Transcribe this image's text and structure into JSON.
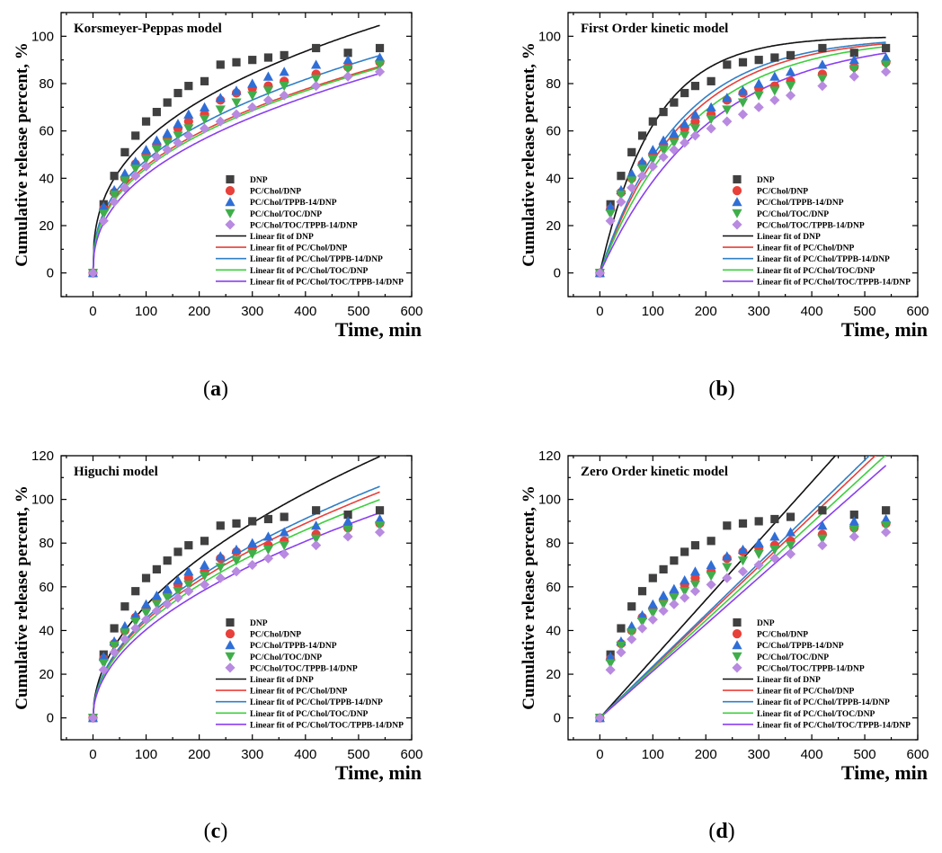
{
  "chart_data": [
    {
      "type": "scatter",
      "panel": "a",
      "title": "Korsmeyer-Peppas model",
      "caption_letter": "a",
      "xlabel": "Time, min",
      "ylabel": "Cumulative release percent, %",
      "xlim": [
        -60,
        600
      ],
      "ylim": [
        -10,
        110
      ],
      "xticks": [
        0,
        100,
        200,
        300,
        400,
        500,
        600
      ],
      "yticks": [
        0,
        20,
        40,
        60,
        80,
        100
      ],
      "x": [
        0,
        20,
        40,
        60,
        80,
        100,
        120,
        140,
        160,
        180,
        210,
        240,
        270,
        300,
        330,
        360,
        420,
        480,
        540
      ],
      "series": [
        {
          "name": "DNP",
          "marker": "square",
          "color": "#404040",
          "values": [
            0,
            29,
            41,
            51,
            58,
            64,
            68,
            72,
            76,
            79,
            81,
            88,
            89,
            90,
            91,
            92,
            95,
            93,
            95
          ]
        },
        {
          "name": "PC/Chol/DNP",
          "marker": "circle",
          "color": "#e8403a",
          "values": [
            0,
            27,
            34,
            40,
            46,
            50,
            54,
            57,
            61,
            64,
            67,
            73,
            76,
            78,
            79,
            81,
            84,
            87,
            89
          ]
        },
        {
          "name": "PC/Chol/TPPB-14/DNP",
          "marker": "triangle-up",
          "color": "#2f6ed6",
          "values": [
            0,
            28,
            35,
            42,
            47,
            52,
            56,
            59,
            63,
            67,
            70,
            74,
            77,
            80,
            83,
            85,
            88,
            90,
            91
          ]
        },
        {
          "name": "PC/Chol/TOC/DNP",
          "marker": "triangle-down",
          "color": "#3fae4a",
          "values": [
            0,
            25,
            33,
            39,
            44,
            48,
            52,
            55,
            58,
            61,
            65,
            69,
            72,
            75,
            77,
            79,
            82,
            86,
            88
          ]
        },
        {
          "name": "PC/Chol/TOC/TPPB-14/DNP",
          "marker": "diamond",
          "color": "#b88ae0",
          "values": [
            0,
            22,
            30,
            36,
            41,
            45,
            49,
            52,
            55,
            58,
            61,
            64,
            67,
            70,
            73,
            75,
            79,
            83,
            85
          ]
        }
      ],
      "fits": [
        {
          "name": "Linear fit of DNP",
          "color": "#111111",
          "kind": "power",
          "k": 10.2,
          "n": 0.37
        },
        {
          "name": "Linear fit of PC/Chol/DNP",
          "color": "#e8403a",
          "kind": "power",
          "k": 7.5,
          "n": 0.39
        },
        {
          "name": "Linear fit of PC/Chol/TPPB-14/DNP",
          "color": "#2f7fc8",
          "kind": "power",
          "k": 7.9,
          "n": 0.39
        },
        {
          "name": "Linear fit of PC/Chol/TOC/DNP",
          "color": "#3ecf3e",
          "kind": "power",
          "k": 7.0,
          "n": 0.4
        },
        {
          "name": "Linear fit of PC/Chol/TOC/TPPB-14/DNP",
          "color": "#8a3ff0",
          "kind": "power",
          "k": 6.0,
          "n": 0.42
        }
      ]
    },
    {
      "type": "scatter",
      "panel": "b",
      "title": "First Order kinetic model",
      "caption_letter": "b",
      "xlabel": "Time, min",
      "ylabel": "Cumulative release percent, %",
      "xlim": [
        -60,
        600
      ],
      "ylim": [
        -10,
        110
      ],
      "xticks": [
        0,
        100,
        200,
        300,
        400,
        500,
        600
      ],
      "yticks": [
        0,
        20,
        40,
        60,
        80,
        100
      ],
      "x": [
        0,
        20,
        40,
        60,
        80,
        100,
        120,
        140,
        160,
        180,
        210,
        240,
        270,
        300,
        330,
        360,
        420,
        480,
        540
      ],
      "series": [
        {
          "name": "DNP",
          "marker": "square",
          "color": "#404040",
          "values": [
            0,
            29,
            41,
            51,
            58,
            64,
            68,
            72,
            76,
            79,
            81,
            88,
            89,
            90,
            91,
            92,
            95,
            93,
            95
          ]
        },
        {
          "name": "PC/Chol/DNP",
          "marker": "circle",
          "color": "#e8403a",
          "values": [
            0,
            27,
            34,
            40,
            46,
            50,
            54,
            57,
            61,
            64,
            67,
            73,
            76,
            78,
            79,
            81,
            84,
            87,
            89
          ]
        },
        {
          "name": "PC/Chol/TPPB-14/DNP",
          "marker": "triangle-up",
          "color": "#2f6ed6",
          "values": [
            0,
            28,
            35,
            42,
            47,
            52,
            56,
            59,
            63,
            67,
            70,
            74,
            77,
            80,
            83,
            85,
            88,
            90,
            91
          ]
        },
        {
          "name": "PC/Chol/TOC/DNP",
          "marker": "triangle-down",
          "color": "#3fae4a",
          "values": [
            0,
            25,
            33,
            39,
            44,
            48,
            52,
            55,
            58,
            61,
            65,
            69,
            72,
            75,
            77,
            79,
            82,
            86,
            88
          ]
        },
        {
          "name": "PC/Chol/TOC/TPPB-14/DNP",
          "marker": "diamond",
          "color": "#b88ae0",
          "values": [
            0,
            22,
            30,
            36,
            41,
            45,
            49,
            52,
            55,
            58,
            61,
            64,
            67,
            70,
            73,
            75,
            79,
            83,
            85
          ]
        }
      ],
      "fits": [
        {
          "name": "Linear fit of DNP",
          "color": "#111111",
          "kind": "first",
          "a": 100,
          "k": 0.0098
        },
        {
          "name": "Linear fit of PC/Chol/DNP",
          "color": "#e8403a",
          "kind": "first",
          "a": 100,
          "k": 0.0064
        },
        {
          "name": "Linear fit of PC/Chol/TPPB-14/DNP",
          "color": "#2f7fc8",
          "kind": "first",
          "a": 100,
          "k": 0.0068
        },
        {
          "name": "Linear fit of PC/Chol/TOC/DNP",
          "color": "#3ecf3e",
          "kind": "first",
          "a": 100,
          "k": 0.0058
        },
        {
          "name": "Linear fit of PC/Chol/TOC/TPPB-14/DNP",
          "color": "#8a3ff0",
          "kind": "first",
          "a": 100,
          "k": 0.0049
        }
      ]
    },
    {
      "type": "scatter",
      "panel": "c",
      "title": "Higuchi model",
      "caption_letter": "c",
      "xlabel": "Time, min",
      "ylabel": "Cumulative release percent, %",
      "xlim": [
        -60,
        600
      ],
      "ylim": [
        -10,
        120
      ],
      "xticks": [
        0,
        100,
        200,
        300,
        400,
        500,
        600
      ],
      "yticks": [
        0,
        20,
        40,
        60,
        80,
        100,
        120
      ],
      "x": [
        0,
        20,
        40,
        60,
        80,
        100,
        120,
        140,
        160,
        180,
        210,
        240,
        270,
        300,
        330,
        360,
        420,
        480,
        540
      ],
      "series": [
        {
          "name": "DNP",
          "marker": "square",
          "color": "#404040",
          "values": [
            0,
            29,
            41,
            51,
            58,
            64,
            68,
            72,
            76,
            79,
            81,
            88,
            89,
            90,
            91,
            92,
            95,
            93,
            95
          ]
        },
        {
          "name": "PC/Chol/DNP",
          "marker": "circle",
          "color": "#e8403a",
          "values": [
            0,
            27,
            34,
            40,
            46,
            50,
            54,
            57,
            61,
            64,
            67,
            73,
            76,
            78,
            79,
            81,
            84,
            87,
            89
          ]
        },
        {
          "name": "PC/Chol/TPPB-14/DNP",
          "marker": "triangle-up",
          "color": "#2f6ed6",
          "values": [
            0,
            28,
            35,
            42,
            47,
            52,
            56,
            59,
            63,
            67,
            70,
            74,
            77,
            80,
            83,
            85,
            88,
            90,
            91
          ]
        },
        {
          "name": "PC/Chol/TOC/DNP",
          "marker": "triangle-down",
          "color": "#3fae4a",
          "values": [
            0,
            25,
            33,
            39,
            44,
            48,
            52,
            55,
            58,
            61,
            65,
            69,
            72,
            75,
            77,
            79,
            82,
            86,
            88
          ]
        },
        {
          "name": "PC/Chol/TOC/TPPB-14/DNP",
          "marker": "diamond",
          "color": "#b88ae0",
          "values": [
            0,
            22,
            30,
            36,
            41,
            45,
            49,
            52,
            55,
            58,
            61,
            64,
            67,
            70,
            73,
            75,
            79,
            83,
            85
          ]
        }
      ],
      "fits": [
        {
          "name": "Linear fit of DNP",
          "color": "#111111",
          "kind": "power",
          "k": 5.15,
          "n": 0.5
        },
        {
          "name": "Linear fit of PC/Chol/DNP",
          "color": "#e8403a",
          "kind": "power",
          "k": 4.45,
          "n": 0.5
        },
        {
          "name": "Linear fit of PC/Chol/TPPB-14/DNP",
          "color": "#2f7fc8",
          "kind": "power",
          "k": 4.56,
          "n": 0.5
        },
        {
          "name": "Linear fit of PC/Chol/TOC/DNP",
          "color": "#3ecf3e",
          "kind": "power",
          "k": 4.3,
          "n": 0.5
        },
        {
          "name": "Linear fit of PC/Chol/TOC/TPPB-14/DNP",
          "color": "#8a3ff0",
          "kind": "power",
          "k": 4.04,
          "n": 0.5
        }
      ]
    },
    {
      "type": "scatter",
      "panel": "d",
      "title": "Zero Order kinetic model",
      "caption_letter": "d",
      "xlabel": "Time, min",
      "ylabel": "Cumulative release percent, %",
      "xlim": [
        -60,
        600
      ],
      "ylim": [
        -10,
        120
      ],
      "xticks": [
        0,
        100,
        200,
        300,
        400,
        500,
        600
      ],
      "yticks": [
        0,
        20,
        40,
        60,
        80,
        100,
        120
      ],
      "x": [
        0,
        20,
        40,
        60,
        80,
        100,
        120,
        140,
        160,
        180,
        210,
        240,
        270,
        300,
        330,
        360,
        420,
        480,
        540
      ],
      "series": [
        {
          "name": "DNP",
          "marker": "square",
          "color": "#404040",
          "values": [
            0,
            29,
            41,
            51,
            58,
            64,
            68,
            72,
            76,
            79,
            81,
            88,
            89,
            90,
            91,
            92,
            95,
            93,
            95
          ]
        },
        {
          "name": "PC/Chol/DNP",
          "marker": "circle",
          "color": "#e8403a",
          "values": [
            0,
            27,
            34,
            40,
            46,
            50,
            54,
            57,
            61,
            64,
            67,
            73,
            76,
            78,
            79,
            81,
            84,
            87,
            89
          ]
        },
        {
          "name": "PC/Chol/TPPB-14/DNP",
          "marker": "triangle-up",
          "color": "#2f6ed6",
          "values": [
            0,
            28,
            35,
            42,
            47,
            52,
            56,
            59,
            63,
            67,
            70,
            74,
            77,
            80,
            83,
            85,
            88,
            90,
            91
          ]
        },
        {
          "name": "PC/Chol/TOC/DNP",
          "marker": "triangle-down",
          "color": "#3fae4a",
          "values": [
            0,
            25,
            33,
            39,
            44,
            48,
            52,
            55,
            58,
            61,
            65,
            69,
            72,
            75,
            77,
            79,
            82,
            86,
            88
          ]
        },
        {
          "name": "PC/Chol/TOC/TPPB-14/DNP",
          "marker": "diamond",
          "color": "#b88ae0",
          "values": [
            0,
            22,
            30,
            36,
            41,
            45,
            49,
            52,
            55,
            58,
            61,
            64,
            67,
            70,
            73,
            75,
            79,
            83,
            85
          ]
        }
      ],
      "fits": [
        {
          "name": "Linear fit of DNP",
          "color": "#111111",
          "kind": "linear",
          "m": 0.27
        },
        {
          "name": "Linear fit of PC/Chol/DNP",
          "color": "#e8403a",
          "kind": "linear",
          "m": 0.231
        },
        {
          "name": "Linear fit of PC/Chol/TPPB-14/DNP",
          "color": "#2f7fc8",
          "kind": "linear",
          "m": 0.236
        },
        {
          "name": "Linear fit of PC/Chol/TOC/DNP",
          "color": "#3ecf3e",
          "kind": "linear",
          "m": 0.223
        },
        {
          "name": "Linear fit of PC/Chol/TOC/TPPB-14/DNP",
          "color": "#8a3ff0",
          "kind": "linear",
          "m": 0.214
        }
      ]
    }
  ]
}
